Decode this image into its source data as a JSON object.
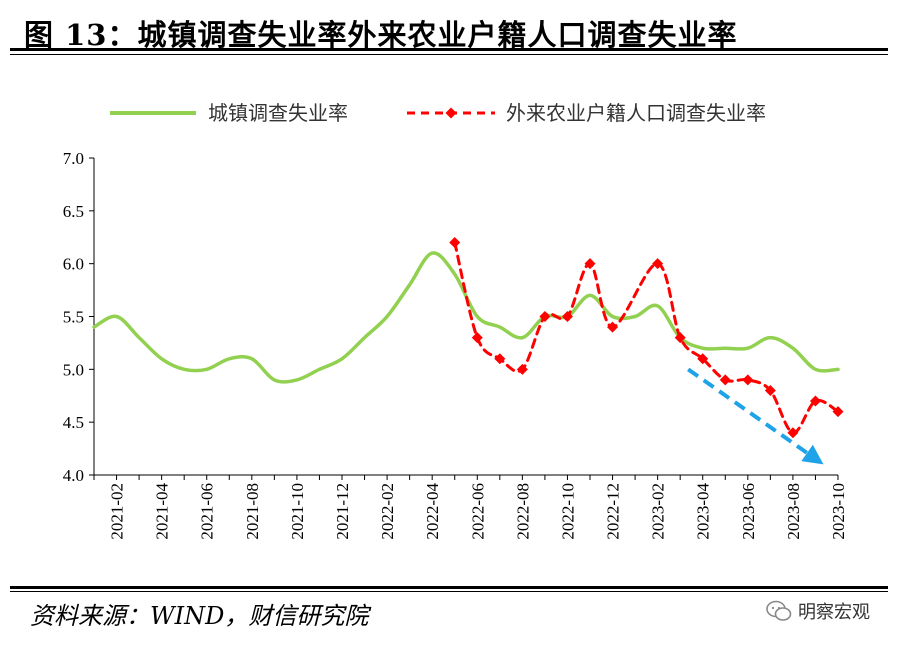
{
  "figure": {
    "title": "图 13：城镇调查失业率外来农业户籍人口调查失业率",
    "source": "资料来源：WIND，财信研究院",
    "brand": "明察宏观",
    "brand_icon": "wechat-icon"
  },
  "chart_data": {
    "type": "line",
    "categories": [
      "2021-01",
      "2021-02",
      "2021-03",
      "2021-04",
      "2021-05",
      "2021-06",
      "2021-07",
      "2021-08",
      "2021-09",
      "2021-10",
      "2021-11",
      "2021-12",
      "2022-01",
      "2022-02",
      "2022-03",
      "2022-04",
      "2022-05",
      "2022-06",
      "2022-07",
      "2022-08",
      "2022-09",
      "2022-10",
      "2022-11",
      "2022-12",
      "2023-01",
      "2023-02",
      "2023-03",
      "2023-04",
      "2023-05",
      "2023-06",
      "2023-07",
      "2023-08",
      "2023-09",
      "2023-10"
    ],
    "tick_labels": [
      "2021-02",
      "2021-04",
      "2021-06",
      "2021-08",
      "2021-10",
      "2021-12",
      "2022-02",
      "2022-04",
      "2022-06",
      "2022-08",
      "2022-10",
      "2022-12",
      "2023-02",
      "2023-04",
      "2023-06",
      "2023-08",
      "2023-10"
    ],
    "series": [
      {
        "name": "城镇调查失业率",
        "color": "#92d050",
        "style": "solid",
        "values": [
          5.4,
          5.5,
          5.3,
          5.1,
          5.0,
          5.0,
          5.1,
          5.1,
          4.9,
          4.9,
          5.0,
          5.1,
          5.3,
          5.5,
          5.8,
          6.1,
          5.9,
          5.5,
          5.4,
          5.3,
          5.5,
          5.5,
          5.7,
          5.5,
          5.5,
          5.6,
          5.3,
          5.2,
          5.2,
          5.2,
          5.3,
          5.2,
          5.0,
          5.0
        ]
      },
      {
        "name": "外来农业户籍人口调查失业率",
        "color": "#ff0000",
        "style": "dashed-diamond",
        "values": [
          null,
          null,
          null,
          null,
          null,
          null,
          null,
          null,
          null,
          null,
          null,
          null,
          null,
          null,
          null,
          null,
          6.2,
          5.3,
          5.1,
          5.0,
          5.5,
          5.5,
          6.0,
          5.4,
          null,
          6.0,
          5.3,
          5.1,
          4.9,
          4.9,
          4.8,
          4.4,
          4.7,
          4.6
        ]
      }
    ],
    "annotation": {
      "type": "trend-arrow",
      "color": "#1fa3e8",
      "from": [
        "2023-03",
        5.0
      ],
      "to": [
        "2023-09",
        4.1
      ]
    },
    "ylim": [
      4.0,
      7.0
    ],
    "yticks": [
      "4.0",
      "4.5",
      "5.0",
      "5.5",
      "6.0",
      "6.5",
      "7.0"
    ],
    "xlabel": "",
    "ylabel": "",
    "grid": false,
    "legend_position": "top"
  }
}
